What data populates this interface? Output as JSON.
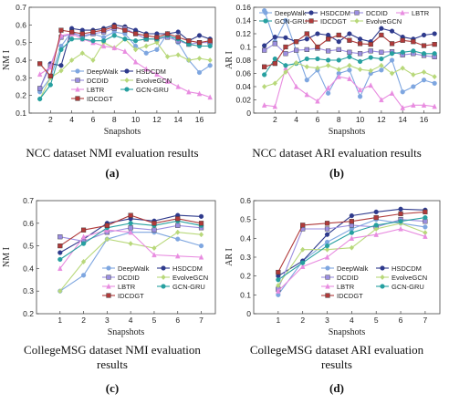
{
  "panels": [
    {
      "caption": "NCC dataset NMI evaluation results",
      "label": "(a)"
    },
    {
      "caption": "NCC dataset ARI evaluation results",
      "label": "(b)"
    },
    {
      "caption": "CollegeMSG dataset NMI evaluation results",
      "label": "(c)"
    },
    {
      "caption": "CollegeMSG dataset ARI evaluation results",
      "label": "(d)"
    }
  ],
  "chart_data": [
    {
      "type": "line",
      "xlabel": "Snapshots",
      "ylabel": "NM I",
      "xlim": [
        0,
        17.5
      ],
      "ylim": [
        0.1,
        0.7
      ],
      "xticks": [
        2,
        4,
        6,
        8,
        10,
        12,
        14,
        16
      ],
      "yticks": [
        0.1,
        0.2,
        0.3,
        0.4,
        0.5,
        0.6,
        0.7
      ],
      "legend_position": "center",
      "legend_columns": 2,
      "x": [
        1,
        2,
        3,
        4,
        5,
        6,
        7,
        8,
        9,
        10,
        11,
        12,
        13,
        14,
        15,
        16,
        17
      ],
      "series": [
        {
          "name": "DeepWalk",
          "color": "#7ea6e0",
          "marker": "circle",
          "values": [
            0.22,
            0.3,
            0.48,
            0.56,
            0.53,
            0.55,
            0.53,
            0.56,
            0.55,
            0.48,
            0.44,
            0.46,
            0.55,
            0.5,
            0.4,
            0.33,
            0.37
          ]
        },
        {
          "name": "HSDCDM",
          "color": "#2e3a8c",
          "marker": "circle",
          "values": [
            0.24,
            0.38,
            0.37,
            0.58,
            0.57,
            0.57,
            0.58,
            0.6,
            0.59,
            0.57,
            0.55,
            0.55,
            0.55,
            0.56,
            0.51,
            0.54,
            0.52
          ]
        },
        {
          "name": "DCDID",
          "color": "#9b8ee0",
          "marker": "square",
          "values": [
            0.24,
            0.37,
            0.53,
            0.55,
            0.54,
            0.55,
            0.56,
            0.58,
            0.58,
            0.55,
            0.52,
            0.52,
            0.53,
            0.51,
            0.49,
            0.5,
            0.5
          ]
        },
        {
          "name": "EvolveGCN",
          "color": "#b8d87a",
          "marker": "diamond",
          "values": [
            0.18,
            0.3,
            0.34,
            0.4,
            0.44,
            0.4,
            0.5,
            0.47,
            0.52,
            0.46,
            0.48,
            0.5,
            0.42,
            0.43,
            0.4,
            0.41,
            0.4
          ]
        },
        {
          "name": "LBTR",
          "color": "#e88ce0",
          "marker": "triangle",
          "values": [
            0.32,
            0.36,
            0.54,
            0.55,
            0.52,
            0.5,
            0.48,
            0.47,
            0.45,
            0.39,
            0.35,
            0.32,
            0.28,
            0.25,
            0.22,
            0.21,
            0.19
          ]
        },
        {
          "name": "GCN-GRU",
          "color": "#26a0a0",
          "marker": "circle",
          "values": [
            0.18,
            0.26,
            0.46,
            0.52,
            0.52,
            0.51,
            0.51,
            0.54,
            0.52,
            0.51,
            0.52,
            0.52,
            0.54,
            0.52,
            0.49,
            0.48,
            0.48
          ]
        },
        {
          "name": "IDCDGT",
          "color": "#b03a3a",
          "marker": "square",
          "values": [
            0.38,
            0.31,
            0.57,
            0.56,
            0.55,
            0.56,
            0.57,
            0.59,
            0.57,
            0.55,
            0.54,
            0.53,
            0.55,
            0.53,
            0.51,
            0.5,
            0.51
          ]
        }
      ]
    },
    {
      "type": "line",
      "xlabel": "Snapshots",
      "ylabel": "AR I",
      "xlim": [
        0,
        17.5
      ],
      "ylim": [
        0.0,
        0.16
      ],
      "xticks": [
        2,
        4,
        6,
        8,
        10,
        12,
        14,
        16
      ],
      "yticks": [
        0.0,
        0.02,
        0.04,
        0.06,
        0.08,
        0.1,
        0.12,
        0.14,
        0.16
      ],
      "legend_position": "top",
      "legend_columns": 4,
      "x": [
        1,
        2,
        3,
        4,
        5,
        6,
        7,
        8,
        9,
        10,
        11,
        12,
        13,
        14,
        15,
        16,
        17
      ],
      "series": [
        {
          "name": "DeepWalk",
          "color": "#7ea6e0",
          "marker": "circle",
          "values": [
            0.155,
            0.108,
            0.14,
            0.095,
            0.05,
            0.065,
            0.03,
            0.06,
            0.065,
            0.025,
            0.06,
            0.065,
            0.08,
            0.032,
            0.04,
            0.05,
            0.045
          ]
        },
        {
          "name": "HSDCDM",
          "color": "#2e3a8c",
          "marker": "circle",
          "values": [
            0.102,
            0.115,
            0.114,
            0.108,
            0.112,
            0.12,
            0.118,
            0.108,
            0.12,
            0.112,
            0.108,
            0.128,
            0.124,
            0.115,
            0.112,
            0.118,
            0.12
          ]
        },
        {
          "name": "DCDID",
          "color": "#9b8ee0",
          "marker": "square",
          "values": [
            0.095,
            0.105,
            0.09,
            0.095,
            0.096,
            0.098,
            0.094,
            0.096,
            0.092,
            0.09,
            0.094,
            0.092,
            0.093,
            0.088,
            0.09,
            0.087,
            0.085
          ]
        },
        {
          "name": "LBTR",
          "color": "#e88ce0",
          "marker": "triangle",
          "values": [
            0.012,
            0.01,
            0.068,
            0.04,
            0.028,
            0.018,
            0.038,
            0.055,
            0.052,
            0.035,
            0.042,
            0.02,
            0.03,
            0.008,
            0.012,
            0.012,
            0.01
          ]
        },
        {
          "name": "GCN-GRU",
          "color": "#26a0a0",
          "marker": "circle",
          "values": [
            0.058,
            0.082,
            0.072,
            0.075,
            0.082,
            0.082,
            0.08,
            0.08,
            0.085,
            0.078,
            0.084,
            0.082,
            0.09,
            0.092,
            0.094,
            0.09,
            0.09
          ]
        },
        {
          "name": "IDCDGT",
          "color": "#b03a3a",
          "marker": "square",
          "values": [
            0.07,
            0.075,
            0.1,
            0.108,
            0.12,
            0.1,
            0.112,
            0.118,
            0.11,
            0.105,
            0.104,
            0.118,
            0.105,
            0.11,
            0.108,
            0.102,
            0.104
          ]
        },
        {
          "name": "EvolveGCN",
          "color": "#b8d87a",
          "marker": "diamond",
          "values": [
            0.04,
            0.045,
            0.062,
            0.076,
            0.07,
            0.068,
            0.072,
            0.066,
            0.072,
            0.066,
            0.064,
            0.072,
            0.06,
            0.068,
            0.058,
            0.062,
            0.055
          ]
        }
      ]
    },
    {
      "type": "line",
      "xlabel": "Snapshots",
      "ylabel": "NM I",
      "xlim": [
        0,
        7.6
      ],
      "ylim": [
        0.2,
        0.7
      ],
      "xticks": [
        1,
        2,
        3,
        4,
        5,
        6,
        7
      ],
      "yticks": [
        0.2,
        0.3,
        0.4,
        0.5,
        0.6,
        0.7
      ],
      "legend_position": "bottom-right",
      "legend_columns": 2,
      "x": [
        1,
        2,
        3,
        4,
        5,
        6,
        7
      ],
      "series": [
        {
          "name": "DeepWalk",
          "color": "#7ea6e0",
          "marker": "circle",
          "values": [
            0.3,
            0.37,
            0.53,
            0.56,
            0.56,
            0.53,
            0.5
          ]
        },
        {
          "name": "HSDCDM",
          "color": "#2e3a8c",
          "marker": "circle",
          "values": [
            0.47,
            0.53,
            0.6,
            0.62,
            0.61,
            0.635,
            0.63
          ]
        },
        {
          "name": "DCDID",
          "color": "#9b8ee0",
          "marker": "square",
          "values": [
            0.54,
            0.52,
            0.56,
            0.58,
            0.57,
            0.59,
            0.58
          ]
        },
        {
          "name": "EvolveGCN",
          "color": "#b8d87a",
          "marker": "diamond",
          "values": [
            0.3,
            0.43,
            0.53,
            0.51,
            0.49,
            0.56,
            0.55
          ]
        },
        {
          "name": "LBTR",
          "color": "#e88ce0",
          "marker": "triangle",
          "values": [
            0.4,
            0.54,
            0.57,
            0.56,
            0.46,
            0.455,
            0.45
          ]
        },
        {
          "name": "GCN-GRU",
          "color": "#26a0a0",
          "marker": "circle",
          "values": [
            0.44,
            0.51,
            0.58,
            0.6,
            0.59,
            0.61,
            0.59
          ]
        },
        {
          "name": "IDCDGT",
          "color": "#b03a3a",
          "marker": "square",
          "values": [
            0.5,
            0.57,
            0.59,
            0.635,
            0.6,
            0.62,
            0.6
          ]
        }
      ]
    },
    {
      "type": "line",
      "xlabel": "Snapshots",
      "ylabel": "AR I",
      "xlim": [
        0,
        7.6
      ],
      "ylim": [
        0.0,
        0.6
      ],
      "xticks": [
        1,
        2,
        3,
        4,
        5,
        6,
        7
      ],
      "yticks": [
        0.0,
        0.1,
        0.2,
        0.3,
        0.4,
        0.5,
        0.6
      ],
      "legend_position": "bottom-right",
      "legend_columns": 2,
      "x": [
        1,
        2,
        3,
        4,
        5,
        6,
        7
      ],
      "series": [
        {
          "name": "DeepWalk",
          "color": "#7ea6e0",
          "marker": "circle",
          "values": [
            0.1,
            0.28,
            0.38,
            0.45,
            0.5,
            0.48,
            0.46
          ]
        },
        {
          "name": "HSDCDM",
          "color": "#2e3a8c",
          "marker": "circle",
          "values": [
            0.2,
            0.28,
            0.42,
            0.52,
            0.54,
            0.555,
            0.55
          ]
        },
        {
          "name": "DCDID",
          "color": "#9b8ee0",
          "marker": "square",
          "values": [
            0.13,
            0.45,
            0.45,
            0.47,
            0.46,
            0.5,
            0.49
          ]
        },
        {
          "name": "EvolveGCN",
          "color": "#b8d87a",
          "marker": "diamond",
          "values": [
            0.15,
            0.34,
            0.34,
            0.35,
            0.45,
            0.48,
            0.43
          ]
        },
        {
          "name": "LBTR",
          "color": "#e88ce0",
          "marker": "triangle",
          "values": [
            0.12,
            0.25,
            0.3,
            0.4,
            0.42,
            0.45,
            0.41
          ]
        },
        {
          "name": "GCN-GRU",
          "color": "#26a0a0",
          "marker": "circle",
          "values": [
            0.18,
            0.27,
            0.36,
            0.43,
            0.47,
            0.49,
            0.51
          ]
        },
        {
          "name": "IDCDGT",
          "color": "#b03a3a",
          "marker": "square",
          "values": [
            0.22,
            0.47,
            0.48,
            0.49,
            0.51,
            0.53,
            0.54
          ]
        }
      ]
    }
  ]
}
